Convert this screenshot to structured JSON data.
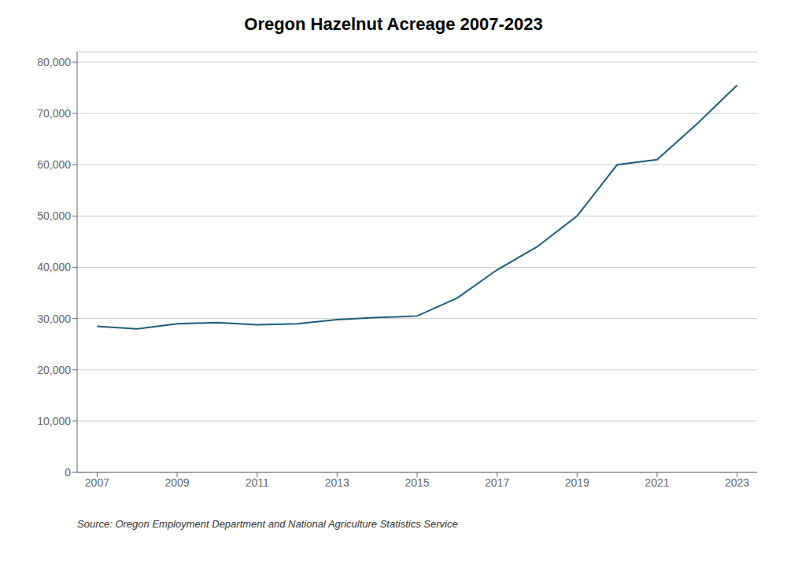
{
  "chart_data": {
    "type": "line",
    "title": "Oregon Hazelnut Acreage 2007-2023",
    "x": [
      2007,
      2008,
      2009,
      2010,
      2011,
      2012,
      2013,
      2014,
      2015,
      2016,
      2017,
      2018,
      2019,
      2020,
      2021,
      2022,
      2023
    ],
    "values": [
      28500,
      28000,
      29000,
      29200,
      28800,
      29000,
      29800,
      30200,
      30500,
      34000,
      39500,
      44000,
      50000,
      60000,
      61000,
      68000,
      75500
    ],
    "color": "#1a5f7a",
    "xlim": [
      2006.5,
      2023.5
    ],
    "xticks": [
      2007,
      2009,
      2011,
      2013,
      2015,
      2017,
      2019,
      2021,
      2023
    ],
    "ylim": [
      0,
      82000
    ],
    "yticks": [
      0,
      {
        "value": 10000,
        "label": "10,000"
      },
      {
        "value": 20000,
        "label": "20,000"
      },
      {
        "value": 30000,
        "label": "30,000"
      },
      {
        "value": 40000,
        "label": "40,000"
      },
      {
        "value": 50000,
        "label": "50,000"
      },
      {
        "value": 60000,
        "label": "60,000"
      },
      {
        "value": 70000,
        "label": "70,000"
      },
      {
        "value": 80000,
        "label": "80,000"
      }
    ],
    "grid": true,
    "annotations": [
      "Source: Oregon Employment Department and National Agriculture Statistics Service"
    ]
  }
}
